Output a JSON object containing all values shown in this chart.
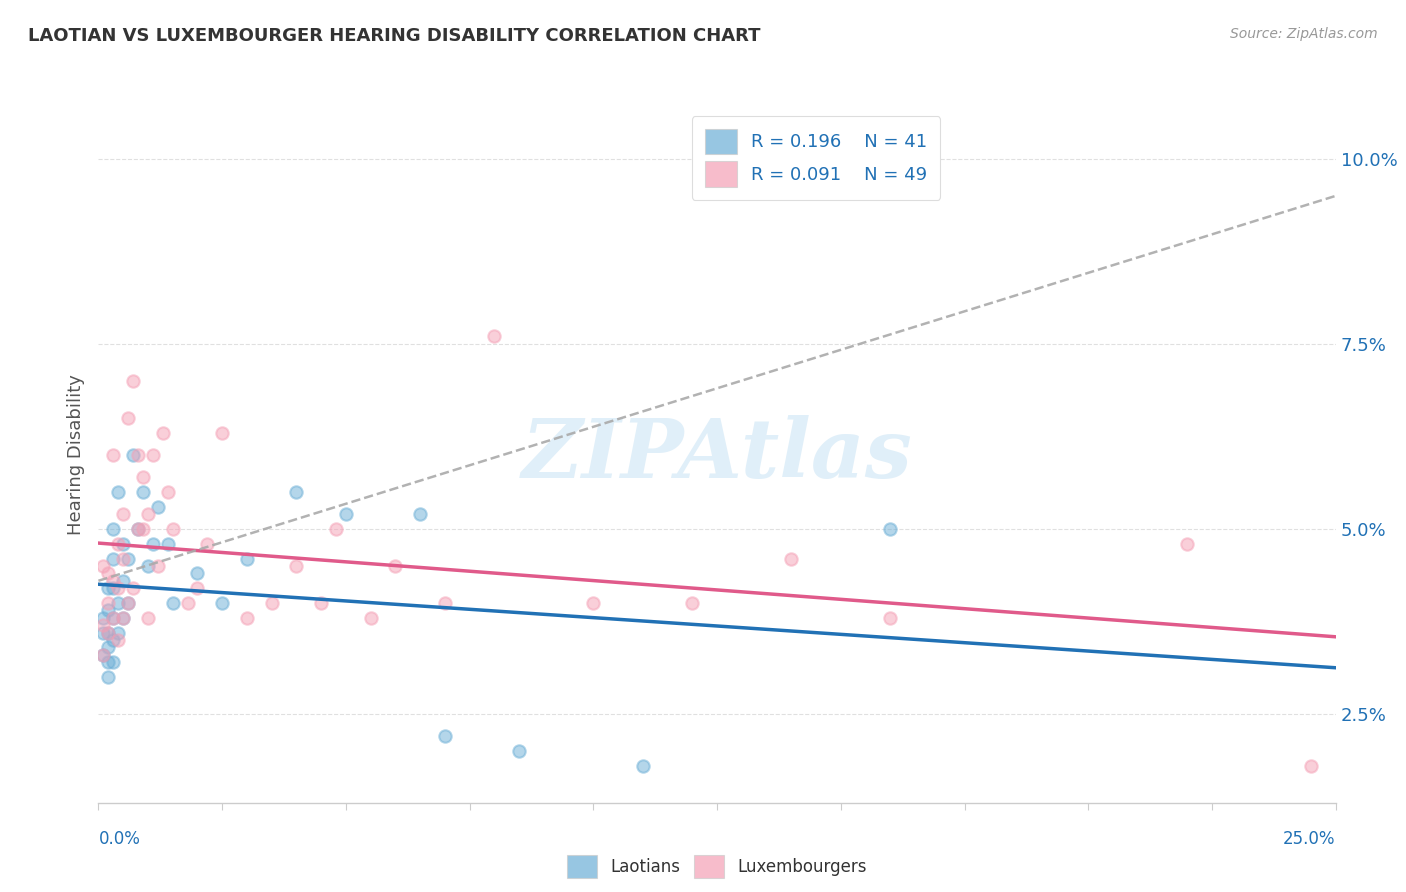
{
  "title": "LAOTIAN VS LUXEMBOURGER HEARING DISABILITY CORRELATION CHART",
  "source": "Source: ZipAtlas.com",
  "ylabel": "Hearing Disability",
  "yticks": [
    0.025,
    0.05,
    0.075,
    0.1
  ],
  "ytick_labels": [
    "2.5%",
    "5.0%",
    "7.5%",
    "10.0%"
  ],
  "xlim": [
    0.0,
    0.25
  ],
  "ylim": [
    0.013,
    0.107
  ],
  "blue_color": "#6baed6",
  "pink_color": "#f4a0b5",
  "blue_line_color": "#2171b5",
  "pink_line_color": "#e05a8a",
  "gray_dash_color": "#aaaaaa",
  "legend_R1": "R = 0.196",
  "legend_N1": "N = 41",
  "legend_R2": "R = 0.091",
  "legend_N2": "N = 49",
  "watermark": "ZIPAtlas",
  "blue_scatter_x": [
    0.001,
    0.001,
    0.001,
    0.002,
    0.002,
    0.002,
    0.002,
    0.002,
    0.002,
    0.003,
    0.003,
    0.003,
    0.003,
    0.003,
    0.003,
    0.004,
    0.004,
    0.004,
    0.005,
    0.005,
    0.005,
    0.006,
    0.006,
    0.007,
    0.008,
    0.009,
    0.01,
    0.011,
    0.012,
    0.014,
    0.015,
    0.02,
    0.025,
    0.03,
    0.04,
    0.05,
    0.065,
    0.07,
    0.085,
    0.11,
    0.16
  ],
  "blue_scatter_y": [
    0.033,
    0.036,
    0.038,
    0.03,
    0.032,
    0.034,
    0.036,
    0.039,
    0.042,
    0.032,
    0.035,
    0.038,
    0.042,
    0.046,
    0.05,
    0.036,
    0.04,
    0.055,
    0.038,
    0.043,
    0.048,
    0.04,
    0.046,
    0.06,
    0.05,
    0.055,
    0.045,
    0.048,
    0.053,
    0.048,
    0.04,
    0.044,
    0.04,
    0.046,
    0.055,
    0.052,
    0.052,
    0.022,
    0.02,
    0.018,
    0.05
  ],
  "pink_scatter_x": [
    0.001,
    0.001,
    0.001,
    0.002,
    0.002,
    0.002,
    0.003,
    0.003,
    0.003,
    0.004,
    0.004,
    0.004,
    0.005,
    0.005,
    0.005,
    0.006,
    0.006,
    0.007,
    0.007,
    0.008,
    0.008,
    0.009,
    0.009,
    0.01,
    0.01,
    0.011,
    0.012,
    0.013,
    0.014,
    0.015,
    0.018,
    0.02,
    0.022,
    0.025,
    0.03,
    0.035,
    0.04,
    0.045,
    0.048,
    0.055,
    0.06,
    0.07,
    0.08,
    0.1,
    0.12,
    0.14,
    0.16,
    0.22,
    0.245
  ],
  "pink_scatter_y": [
    0.033,
    0.037,
    0.045,
    0.036,
    0.04,
    0.044,
    0.038,
    0.043,
    0.06,
    0.035,
    0.042,
    0.048,
    0.038,
    0.046,
    0.052,
    0.04,
    0.065,
    0.042,
    0.07,
    0.05,
    0.06,
    0.05,
    0.057,
    0.052,
    0.038,
    0.06,
    0.045,
    0.063,
    0.055,
    0.05,
    0.04,
    0.042,
    0.048,
    0.063,
    0.038,
    0.04,
    0.045,
    0.04,
    0.05,
    0.038,
    0.045,
    0.04,
    0.076,
    0.04,
    0.04,
    0.046,
    0.038,
    0.048,
    0.018
  ]
}
